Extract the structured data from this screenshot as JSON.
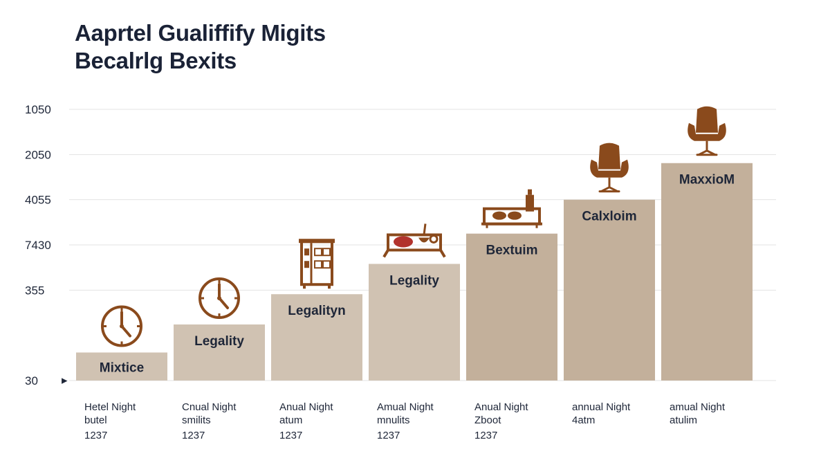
{
  "title": {
    "line1": "Aaprtel Gualiffify Migits",
    "line2": "Becalrlg Bexits"
  },
  "chart_data": {
    "type": "bar",
    "y_ticks": [
      {
        "label": "1050",
        "level": 6
      },
      {
        "label": "2050",
        "level": 5
      },
      {
        "label": "4055",
        "level": 4
      },
      {
        "label": "7430",
        "level": 3
      },
      {
        "label": "355",
        "level": 2
      },
      {
        "label": "30",
        "level": 0
      }
    ],
    "ylim": [
      0,
      6
    ],
    "grid": true,
    "baseline_marker": "▸",
    "colors": {
      "bar_light": "#d0c2b2",
      "bar_dark": "#c3b09b",
      "icon": "#8a4a1c",
      "grid": "#e3e3e3"
    },
    "bars": [
      {
        "label": "Mixtice",
        "value": 0.62,
        "icon": "clock-icon",
        "category_lines": [
          "Hetel Night",
          "butel"
        ],
        "category_value": "1237",
        "shade": "light"
      },
      {
        "label": "Legality",
        "value": 1.24,
        "icon": "clock-icon",
        "category_lines": [
          "Cnual Night",
          "smilits"
        ],
        "category_value": "1237",
        "shade": "light"
      },
      {
        "label": "Legalityn",
        "value": 1.91,
        "icon": "cabinet-icon",
        "category_lines": [
          "Anual Night",
          "atum"
        ],
        "category_value": "1237",
        "shade": "light"
      },
      {
        "label": "Legality",
        "value": 2.58,
        "icon": "food-tray-icon",
        "category_lines": [
          "Amual Night",
          "mnulits"
        ],
        "category_value": "1237",
        "shade": "light"
      },
      {
        "label": "Bextuim",
        "value": 3.25,
        "icon": "serving-tray-icon",
        "category_lines": [
          "Anual Night",
          "Zboot"
        ],
        "category_value": "1237",
        "shade": "dark"
      },
      {
        "label": "Calxloim",
        "value": 4.0,
        "icon": "armchair-icon",
        "category_lines": [
          "annual Night",
          "4atm"
        ],
        "category_value": "",
        "shade": "dark"
      },
      {
        "label": "MaxxioM",
        "value": 4.81,
        "icon": "armchair-icon",
        "category_lines": [
          "amual Night",
          "atulim"
        ],
        "category_value": "",
        "shade": "dark"
      }
    ]
  }
}
